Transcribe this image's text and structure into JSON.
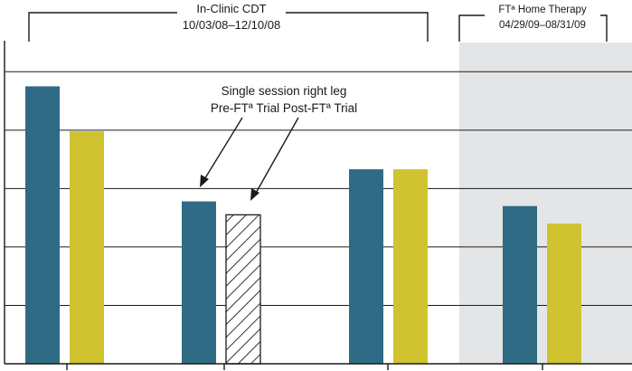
{
  "colors": {
    "pre": "#2f6b85",
    "post": "#cfc32f",
    "shade": "#e4e5e6",
    "grid": "#1a1a1a",
    "hatch_fill": "#ffffff",
    "hatch_stroke": "#1a1a1a"
  },
  "brackets": {
    "clinic": {
      "title": "In-Clinic CDT",
      "dates": "10/03/08–12/10/08"
    },
    "home": {
      "title": "FTª Home Therapy",
      "dates": "04/29/09–08/31/09"
    }
  },
  "annotation": {
    "line1": "Single session right leg",
    "line2": "Pre-FTª Trial Post-FTª Trial"
  },
  "chart_data": {
    "type": "bar",
    "title": "",
    "xlabel": "",
    "ylabel": "",
    "ylim": [
      0,
      5.5
    ],
    "grid": true,
    "gridlines": [
      1,
      2,
      3,
      4,
      5
    ],
    "group_count": 4,
    "shaded_groups": [
      3
    ],
    "bars": [
      {
        "group": 0,
        "series": "pre",
        "value": 4.75
      },
      {
        "group": 0,
        "series": "post",
        "value": 3.98
      },
      {
        "group": 1,
        "series": "pre",
        "value": 2.78
      },
      {
        "group": 1,
        "series": "post_hatched",
        "value": 2.55
      },
      {
        "group": 2,
        "series": "pre",
        "value": 3.33
      },
      {
        "group": 2,
        "series": "post",
        "value": 3.33
      },
      {
        "group": 3,
        "series": "pre",
        "value": 2.7
      },
      {
        "group": 3,
        "series": "post",
        "value": 2.4
      }
    ]
  }
}
